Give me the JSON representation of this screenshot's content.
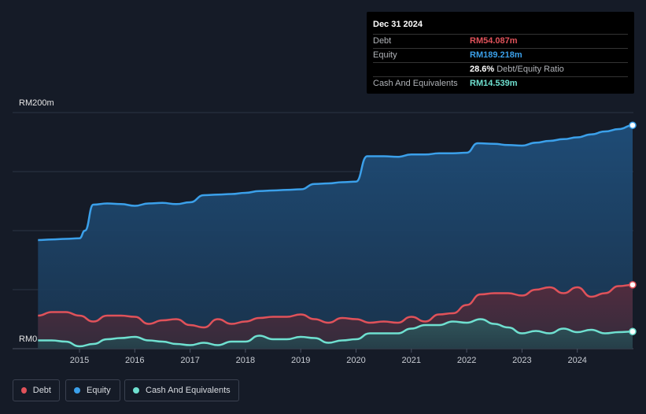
{
  "tooltip": {
    "date": "Dec 31 2024",
    "debt_label": "Debt",
    "debt_value": "RM54.087m",
    "equity_label": "Equity",
    "equity_value": "RM189.218m",
    "ratio_value": "28.6%",
    "ratio_label": "Debt/Equity Ratio",
    "cash_label": "Cash And Equivalents",
    "cash_value": "RM14.539m"
  },
  "legend": {
    "debt": "Debt",
    "equity": "Equity",
    "cash": "Cash And Equivalents"
  },
  "colors": {
    "debt": "#e0525a",
    "equity": "#3ba0ea",
    "cash": "#6fe0d0",
    "background": "#151b27"
  },
  "chart_data": {
    "type": "area",
    "y_top_label": "RM200m",
    "y_bottom_label": "RM0",
    "ylim": [
      0,
      200
    ],
    "x_ticks": [
      "2015",
      "2016",
      "2017",
      "2018",
      "2019",
      "2020",
      "2021",
      "2022",
      "2023",
      "2024"
    ],
    "x_range": [
      2014.0,
      2025.0
    ],
    "grid": true,
    "series": [
      {
        "name": "Equity",
        "x": [
          2014.25,
          2014.5,
          2014.75,
          2015.0,
          2015.1,
          2015.25,
          2015.5,
          2015.75,
          2016.0,
          2016.25,
          2016.5,
          2016.75,
          2017.0,
          2017.25,
          2017.5,
          2017.75,
          2018.0,
          2018.25,
          2018.5,
          2018.75,
          2019.0,
          2019.25,
          2019.5,
          2019.75,
          2020.0,
          2020.2,
          2020.5,
          2020.75,
          2021.0,
          2021.25,
          2021.5,
          2021.75,
          2022.0,
          2022.2,
          2022.5,
          2022.75,
          2023.0,
          2023.25,
          2023.5,
          2023.75,
          2024.0,
          2024.25,
          2024.5,
          2024.75,
          2025.0
        ],
        "values": [
          92,
          92.5,
          93,
          93.5,
          100,
          122,
          123,
          122.5,
          121,
          123,
          123.5,
          122.5,
          124,
          130,
          130.5,
          131,
          132,
          133.5,
          134,
          134.5,
          135,
          139.5,
          140,
          141,
          141.5,
          163,
          163,
          162.5,
          164.5,
          164.5,
          165.5,
          165.5,
          166,
          174,
          173.5,
          172.5,
          172,
          174.5,
          176,
          177.5,
          179,
          181.5,
          184,
          186,
          189.2
        ]
      },
      {
        "name": "Debt",
        "x": [
          2014.25,
          2014.5,
          2014.75,
          2015.0,
          2015.25,
          2015.5,
          2015.75,
          2016.0,
          2016.25,
          2016.5,
          2016.75,
          2017.0,
          2017.25,
          2017.5,
          2017.75,
          2018.0,
          2018.25,
          2018.5,
          2018.75,
          2019.0,
          2019.25,
          2019.5,
          2019.75,
          2020.0,
          2020.25,
          2020.5,
          2020.75,
          2021.0,
          2021.25,
          2021.5,
          2021.75,
          2022.0,
          2022.25,
          2022.5,
          2022.75,
          2023.0,
          2023.25,
          2023.5,
          2023.75,
          2024.0,
          2024.25,
          2024.5,
          2024.75,
          2025.0
        ],
        "values": [
          28,
          31,
          31,
          28,
          23,
          28,
          28,
          27,
          21,
          24,
          25,
          20,
          18,
          25,
          21,
          23,
          26,
          27,
          27,
          29,
          25,
          22,
          26,
          25,
          22,
          23,
          22,
          27,
          23,
          29,
          30,
          37,
          46,
          47,
          47,
          45,
          50,
          52,
          47,
          52,
          44,
          47,
          53,
          54.1
        ]
      },
      {
        "name": "Cash And Equivalents",
        "x": [
          2014.25,
          2014.5,
          2014.75,
          2015.0,
          2015.25,
          2015.5,
          2015.75,
          2016.0,
          2016.25,
          2016.5,
          2016.75,
          2017.0,
          2017.25,
          2017.5,
          2017.75,
          2018.0,
          2018.25,
          2018.5,
          2018.75,
          2019.0,
          2019.25,
          2019.5,
          2019.75,
          2020.0,
          2020.25,
          2020.5,
          2020.75,
          2021.0,
          2021.25,
          2021.5,
          2021.75,
          2022.0,
          2022.25,
          2022.5,
          2022.75,
          2023.0,
          2023.25,
          2023.5,
          2023.75,
          2024.0,
          2024.25,
          2024.5,
          2024.75,
          2025.0
        ],
        "values": [
          7,
          7,
          6,
          2,
          4,
          8,
          9,
          10,
          7,
          6,
          4,
          3,
          5,
          3,
          6,
          6,
          11,
          8,
          8,
          10,
          9,
          5,
          7,
          8,
          13,
          13,
          13,
          17,
          20,
          20,
          23,
          22,
          25,
          21,
          18,
          13,
          15,
          13,
          17,
          14,
          16,
          13,
          14,
          14.5
        ]
      }
    ]
  }
}
